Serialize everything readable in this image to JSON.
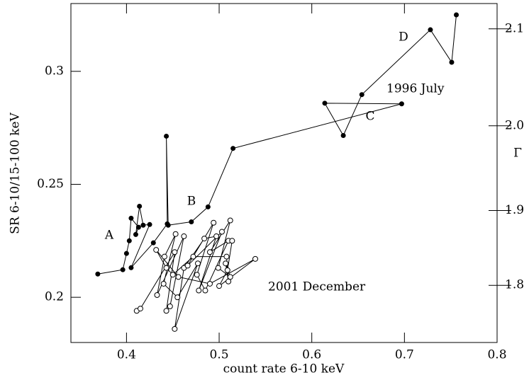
{
  "chart_data": {
    "type": "line-scatter",
    "xlabel": "count rate 6-10 keV",
    "ylabel": "SR 6-10/15-100 keV",
    "y2label": "Γ",
    "xlim": [
      0.34,
      0.8
    ],
    "ylim": [
      0.18,
      0.33
    ],
    "xticks": [
      0.4,
      0.5,
      0.6,
      0.7,
      0.8
    ],
    "yticks": [
      0.2,
      0.25,
      0.3
    ],
    "y2ticks": [
      {
        "value": 1.8,
        "label": "1.8",
        "sr": 0.2053
      },
      {
        "value": 1.9,
        "label": "1.9",
        "sr": 0.2384
      },
      {
        "value": 2,
        "label": "2.0",
        "sr": 0.2759
      },
      {
        "value": 2.1,
        "label": "2.1",
        "sr": 0.3188
      }
    ],
    "annotations": [
      "A",
      "B",
      "C",
      "D",
      "1996 July",
      "2001 December"
    ],
    "series": [
      {
        "name": "1996 July",
        "marker": "filled",
        "color": "#000000",
        "x": [
          0.369,
          0.396,
          0.4,
          0.403,
          0.405,
          0.413,
          0.41,
          0.414,
          0.418,
          0.425,
          0.405,
          0.429,
          0.444,
          0.443,
          0.445,
          0.47,
          0.488,
          0.515,
          0.697,
          0.614,
          0.634,
          0.654,
          0.728,
          0.751,
          0.756
        ],
        "y": [
          0.2103,
          0.2122,
          0.2194,
          0.225,
          0.235,
          0.231,
          0.2278,
          0.2403,
          0.2319,
          0.2322,
          0.2131,
          0.2241,
          0.2325,
          0.2713,
          0.2319,
          0.2334,
          0.24,
          0.2659,
          0.2856,
          0.2859,
          0.2716,
          0.2897,
          0.3184,
          0.304,
          0.325
        ]
      },
      {
        "name": "2001 December",
        "marker": "open",
        "color": "#000000",
        "x": [
          0.411,
          0.415,
          0.452,
          0.443,
          0.447,
          0.462,
          0.433,
          0.441,
          0.453,
          0.44,
          0.455,
          0.477,
          0.452,
          0.462,
          0.484,
          0.497,
          0.478,
          0.503,
          0.466,
          0.494,
          0.476,
          0.485,
          0.51,
          0.49,
          0.512,
          0.499,
          0.512,
          0.507,
          0.51,
          0.508,
          0.472,
          0.45,
          0.443,
          0.432,
          0.456,
          0.49,
          0.539,
          0.5,
          0.509,
          0.514
        ],
        "y": [
          0.194,
          0.195,
          0.22,
          0.194,
          0.196,
          0.227,
          0.201,
          0.218,
          0.228,
          0.206,
          0.2,
          0.215,
          0.186,
          0.213,
          0.226,
          0.227,
          0.203,
          0.229,
          0.214,
          0.233,
          0.21,
          0.203,
          0.225,
          0.22,
          0.234,
          0.213,
          0.209,
          0.215,
          0.207,
          0.218,
          0.218,
          0.21,
          0.213,
          0.221,
          0.209,
          0.206,
          0.217,
          0.205,
          0.212,
          0.225
        ]
      }
    ]
  }
}
